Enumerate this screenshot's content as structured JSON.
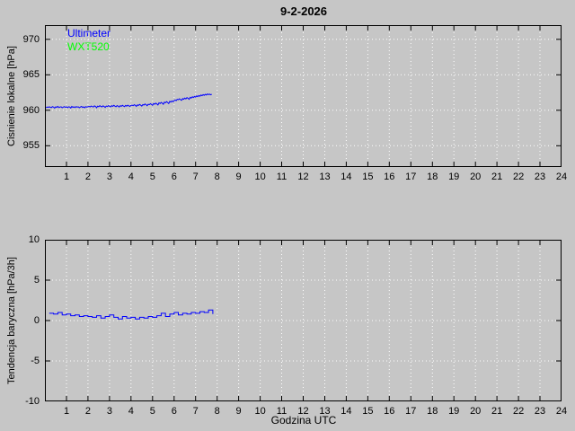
{
  "colors": {
    "background": "#c6c6c6",
    "grid": "#ffffff",
    "axis": "#000000",
    "text": "#000000",
    "ultimeter": "#0000ff",
    "wxt520": "#00ff00"
  },
  "chart_data": [
    {
      "type": "line",
      "title": "9-2-2026",
      "ylabel": "Cisnienie lokalne [hPa]",
      "xlabel": "",
      "xlim": [
        0,
        24
      ],
      "ylim": [
        952,
        972
      ],
      "xticks": [
        1,
        2,
        3,
        4,
        5,
        6,
        7,
        8,
        9,
        10,
        11,
        12,
        13,
        14,
        15,
        16,
        17,
        18,
        19,
        20,
        21,
        22,
        23,
        24
      ],
      "yticks": [
        955,
        960,
        965,
        970
      ],
      "grid": true,
      "legend_position": "top-left-inside",
      "series": [
        {
          "name": "Ultimeter",
          "color": "#0000ff",
          "draw": "line",
          "x_start": 0.05,
          "x_step": 0.05,
          "values": [
            960.35,
            960.45,
            960.4,
            960.5,
            960.42,
            960.38,
            960.52,
            960.44,
            960.3,
            960.48,
            960.42,
            960.55,
            960.38,
            960.46,
            960.5,
            960.35,
            960.44,
            960.52,
            960.4,
            960.48,
            960.36,
            960.5,
            960.45,
            960.32,
            960.54,
            960.42,
            960.48,
            960.38,
            960.52,
            960.44,
            960.5,
            960.36,
            960.46,
            960.55,
            960.4,
            960.48,
            960.35,
            960.52,
            960.44,
            960.5,
            960.55,
            960.48,
            960.6,
            960.52,
            960.45,
            960.62,
            960.55,
            960.35,
            960.58,
            960.5,
            960.65,
            960.55,
            960.48,
            960.62,
            960.54,
            960.4,
            960.6,
            960.52,
            960.66,
            960.56,
            960.48,
            960.64,
            960.55,
            960.7,
            960.58,
            960.5,
            960.66,
            960.58,
            960.45,
            960.64,
            960.56,
            960.7,
            960.6,
            960.52,
            960.68,
            960.58,
            960.72,
            960.62,
            960.55,
            960.7,
            960.72,
            960.65,
            960.78,
            960.7,
            960.55,
            960.76,
            960.68,
            960.82,
            960.72,
            960.6,
            960.8,
            960.74,
            960.88,
            960.78,
            960.65,
            960.85,
            960.78,
            960.92,
            960.82,
            960.7,
            960.95,
            960.85,
            961.0,
            960.88,
            960.75,
            961.05,
            960.95,
            961.12,
            961.0,
            960.85,
            961.15,
            961.05,
            961.22,
            961.1,
            960.95,
            961.25,
            961.15,
            961.32,
            961.2,
            961.35,
            961.45,
            961.35,
            961.55,
            961.48,
            961.62,
            961.5,
            961.4,
            961.65,
            961.55,
            961.72,
            961.6,
            961.78,
            961.68,
            961.55,
            961.82,
            961.72,
            961.9,
            961.8,
            961.95,
            961.85,
            962.02,
            961.92,
            962.08,
            961.98,
            962.15,
            962.05,
            962.2,
            962.1,
            962.25,
            962.15,
            962.3,
            962.2,
            962.28,
            962.18,
            962.25
          ]
        },
        {
          "name": "WXT520",
          "color": "#00ff00",
          "draw": "line",
          "x_start": 0.05,
          "x_step": 0.05,
          "values": []
        }
      ]
    },
    {
      "type": "line",
      "title": "",
      "ylabel": "Tendencja baryczna [hPa/3h]",
      "xlabel": "Godzina UTC",
      "xlim": [
        0,
        24
      ],
      "ylim": [
        -10,
        10
      ],
      "xticks": [
        1,
        2,
        3,
        4,
        5,
        6,
        7,
        8,
        9,
        10,
        11,
        12,
        13,
        14,
        15,
        16,
        17,
        18,
        19,
        20,
        21,
        22,
        23,
        24
      ],
      "yticks": [
        -10,
        -5,
        0,
        5,
        10
      ],
      "grid": true,
      "series": [
        {
          "name": "Ultimeter",
          "color": "#0000ff",
          "draw": "step",
          "x_start": 0.2,
          "x_step": 0.2,
          "values": [
            0.9,
            0.8,
            1.0,
            0.7,
            0.8,
            0.6,
            0.7,
            0.5,
            0.6,
            0.5,
            0.4,
            0.6,
            0.3,
            0.5,
            0.7,
            0.4,
            0.2,
            0.5,
            0.3,
            0.4,
            0.2,
            0.4,
            0.3,
            0.5,
            0.4,
            0.6,
            0.9,
            0.5,
            0.8,
            1.0,
            0.7,
            0.9,
            0.8,
            1.0,
            0.9,
            1.1,
            1.0,
            1.3,
            0.8
          ]
        }
      ]
    }
  ]
}
